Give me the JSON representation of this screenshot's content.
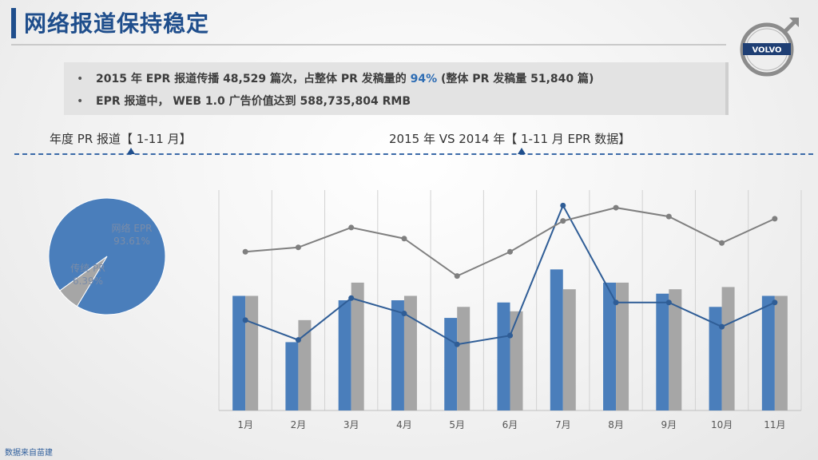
{
  "header": {
    "title": "网络报道保持稳定"
  },
  "logo": {
    "text": "VOLVO"
  },
  "bullets": {
    "bullet_char": "•",
    "line1_pre": "2015 年 EPR 报道传播 48,529 篇次，占整体 PR 发稿量的 ",
    "line1_highlight": "94%",
    "line1_post": "  (整体 PR 发稿量 51,840 篇)",
    "line2": "EPR 报道中， WEB 1.0  广告价值达到 588,735,804 RMB"
  },
  "subheads": {
    "left": "年度 PR 报道【 1-11 月】",
    "right": "2015 年  VS 2014 年【 1-11 月 EPR 数据】"
  },
  "source": "数据来自苗建",
  "colors": {
    "blue": "#4a7ebb",
    "gray": "#a6a6a6",
    "dark_blue_line": "#2f5d96",
    "gray_line": "#7f7f7f",
    "title": "#1f4e8c"
  },
  "chart_data": [
    {
      "type": "pie",
      "labels": [
        "网络 EPR",
        "传统 PR"
      ],
      "values": [
        93.61,
        6.39
      ],
      "value_labels": [
        "93.61%",
        "6.39%"
      ],
      "colors": [
        "#4a7ebb",
        "#a6a6a6"
      ]
    },
    {
      "type": "bar",
      "categories": [
        "1月",
        "2月",
        "3月",
        "4月",
        "5月",
        "6月",
        "7月",
        "8月",
        "9月",
        "10月",
        "11月"
      ],
      "ylim": [
        0,
        100
      ],
      "series": [
        {
          "kind": "bar",
          "color": "#4a7ebb",
          "values": [
            52,
            31,
            50,
            50,
            42,
            49,
            64,
            58,
            53,
            47,
            52
          ]
        },
        {
          "kind": "bar",
          "color": "#a6a6a6",
          "values": [
            52,
            41,
            58,
            52,
            47,
            45,
            55,
            58,
            55,
            56,
            52
          ]
        },
        {
          "kind": "line",
          "color": "#2f5d96",
          "values": [
            41,
            32,
            51,
            44,
            30,
            34,
            93,
            49,
            49,
            38,
            49
          ]
        },
        {
          "kind": "line",
          "color": "#7f7f7f",
          "values": [
            72,
            74,
            83,
            78,
            61,
            72,
            86,
            92,
            88,
            76,
            87
          ]
        }
      ]
    }
  ]
}
